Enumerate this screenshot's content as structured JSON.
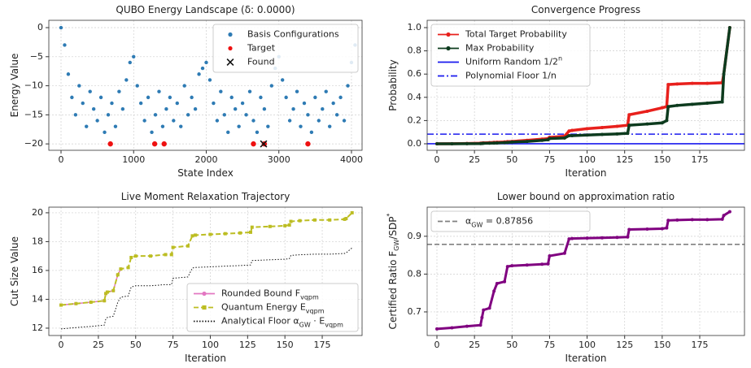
{
  "chart_data": [
    {
      "type": "scatter",
      "title": "QUBO Energy Landscape (δ: 0.0000)",
      "xlabel": "State Index",
      "ylabel": "Energy Value",
      "xlim": [
        -168,
        4146
      ],
      "ylim": [
        -21.1,
        1.26
      ],
      "xticks": [
        0,
        1000,
        2000,
        3000,
        4000
      ],
      "yticks": [
        {
          "value": -20,
          "label": "−20"
        },
        {
          "value": -15,
          "label": "−15"
        },
        {
          "value": -10,
          "label": "−10"
        },
        {
          "value": -5,
          "label": "−5"
        },
        0
      ],
      "grid": true,
      "legend": "upper right",
      "series": [
        {
          "name": "Basis Configurations",
          "color": "#2e7bb4",
          "marker": "dot",
          "x": [
            0,
            50,
            100,
            150,
            200,
            250,
            300,
            350,
            400,
            450,
            500,
            550,
            600,
            650,
            700,
            750,
            800,
            850,
            900,
            950,
            1000,
            1050,
            1100,
            1150,
            1200,
            1250,
            1300,
            1350,
            1400,
            1450,
            1500,
            1550,
            1600,
            1650,
            1700,
            1750,
            1800,
            1850,
            1900,
            1950,
            2000,
            2050,
            2100,
            2150,
            2200,
            2250,
            2300,
            2350,
            2400,
            2450,
            2500,
            2550,
            2600,
            2650,
            2700,
            2750,
            2800,
            2850,
            2900,
            2950,
            3000,
            3050,
            3100,
            3150,
            3200,
            3250,
            3300,
            3350,
            3400,
            3450,
            3500,
            3550,
            3600,
            3650,
            3700,
            3750,
            3800,
            3850,
            3900,
            3950,
            4000,
            4050
          ],
          "values": [
            0,
            -3,
            -8,
            -12,
            -15,
            -10,
            -13,
            -17,
            -11,
            -14,
            -16,
            -12,
            -18,
            -15,
            -13,
            -17,
            -11,
            -14,
            -9,
            -6,
            -5,
            -10,
            -13,
            -16,
            -12,
            -18,
            -15,
            -11,
            -17,
            -14,
            -12,
            -16,
            -13,
            -17,
            -10,
            -15,
            -12,
            -14,
            -8,
            -7,
            -6,
            -9,
            -13,
            -16,
            -11,
            -15,
            -18,
            -12,
            -14,
            -17,
            -13,
            -15,
            -11,
            -16,
            -18,
            -12,
            -14,
            -17,
            -10,
            -7,
            -5,
            -9,
            -12,
            -16,
            -14,
            -11,
            -17,
            -13,
            -15,
            -18,
            -12,
            -16,
            -14,
            -11,
            -17,
            -13,
            -15,
            -12,
            -16,
            -10,
            -6,
            -3
          ]
        },
        {
          "name": "Target",
          "color": "#ee1111",
          "marker": "dot",
          "x": [
            680,
            1290,
            1420,
            2650,
            2800,
            3400
          ],
          "values": [
            -20,
            -20,
            -20,
            -20,
            -20,
            -20
          ]
        },
        {
          "name": "Found",
          "color": "#111111",
          "marker": "x",
          "x": [
            2790
          ],
          "values": [
            -20
          ]
        }
      ]
    },
    {
      "type": "line",
      "title": "Convergence Progress",
      "xlabel": "Iteration",
      "ylabel": "Probability",
      "xlim": [
        -6.5,
        204.8
      ],
      "ylim": [
        -0.056,
        1.063
      ],
      "xticks": [
        0,
        25,
        50,
        75,
        100,
        125,
        150,
        175
      ],
      "yticks": [
        {
          "value": 0,
          "label": "0.0"
        },
        0.2,
        0.4,
        0.6,
        0.8,
        {
          "value": 1,
          "label": "1.0"
        }
      ],
      "grid": true,
      "legend": "upper left",
      "x": [
        0,
        10,
        20,
        29,
        30,
        31,
        35,
        38,
        40,
        45,
        47,
        50,
        60,
        70,
        74,
        75,
        85,
        88,
        90,
        100,
        110,
        120,
        127,
        128,
        140,
        150,
        153,
        154,
        160,
        170,
        180,
        190,
        191,
        195
      ],
      "series": [
        {
          "name": "Total Target Probability",
          "color": "#e8201c",
          "width": 3.5,
          "marker": "dot",
          "values": [
            0,
            0.001,
            0.003,
            0.005,
            0.006,
            0.008,
            0.01,
            0.012,
            0.013,
            0.016,
            0.018,
            0.02,
            0.03,
            0.04,
            0.045,
            0.055,
            0.065,
            0.11,
            0.115,
            0.13,
            0.14,
            0.15,
            0.16,
            0.25,
            0.28,
            0.31,
            0.32,
            0.51,
            0.515,
            0.52,
            0.52,
            0.525,
            0.6,
            1.0
          ]
        },
        {
          "name": "Max Probability",
          "color": "#0d3b1e",
          "width": 3.5,
          "marker": "dot",
          "values": [
            0,
            0,
            0.001,
            0.002,
            0.003,
            0.004,
            0.005,
            0.006,
            0.007,
            0.01,
            0.011,
            0.015,
            0.02,
            0.03,
            0.035,
            0.045,
            0.05,
            0.07,
            0.07,
            0.075,
            0.08,
            0.085,
            0.09,
            0.16,
            0.17,
            0.18,
            0.2,
            0.32,
            0.33,
            0.34,
            0.35,
            0.36,
            0.6,
            1.0
          ]
        }
      ],
      "hlines": [
        {
          "name": "Uniform Random 1/2^n",
          "value": 0.0002,
          "color": "#1a1aee",
          "style": "solid"
        },
        {
          "name": "Polynomial Floor 1/n",
          "value": 0.083,
          "color": "#1a1aee",
          "style": "dashdot"
        }
      ]
    },
    {
      "type": "line",
      "title": "Live Moment Relaxation Trajectory",
      "xlabel": "Iteration",
      "ylabel": "Cut Size Value",
      "xlim": [
        -8.2,
        201.7
      ],
      "ylim": [
        11.49,
        20.39
      ],
      "xticks": [
        0,
        25,
        50,
        75,
        100,
        125,
        150,
        175
      ],
      "yticks": [
        12,
        14,
        16,
        18,
        20
      ],
      "grid": true,
      "legend": "lower right",
      "x": [
        0,
        10,
        20,
        29,
        30,
        31,
        35,
        38,
        40,
        45,
        47,
        50,
        60,
        70,
        74,
        75,
        85,
        88,
        90,
        100,
        110,
        120,
        127,
        128,
        140,
        150,
        153,
        154,
        160,
        170,
        180,
        190,
        191,
        195
      ],
      "series": [
        {
          "name": "Rounded Bound F_vqpm",
          "color": "#e377c2",
          "width": 1.5,
          "marker": "dot",
          "values": [
            13.6,
            13.7,
            13.8,
            13.9,
            14.4,
            14.5,
            14.6,
            15.7,
            16.1,
            null,
            null,
            null,
            null,
            null,
            null,
            null,
            null,
            null,
            null,
            null,
            null,
            null,
            null,
            null,
            null,
            null,
            null,
            null,
            null,
            null,
            null,
            null,
            null,
            null
          ]
        },
        {
          "name": "Quantum Energy E_vqpm",
          "color": "#bcbd22",
          "width": 2,
          "marker": "square",
          "style": "dashed",
          "values": [
            13.6,
            13.7,
            13.8,
            13.9,
            14.4,
            14.5,
            14.6,
            15.7,
            16.1,
            16.2,
            16.9,
            17.0,
            17.0,
            17.1,
            17.1,
            17.6,
            17.7,
            18.4,
            18.45,
            18.5,
            18.55,
            18.6,
            18.65,
            19.0,
            19.05,
            19.1,
            19.15,
            19.4,
            19.45,
            19.5,
            19.5,
            19.55,
            19.6,
            20.0
          ]
        },
        {
          "name": "Analytical Floor α_GW · E_vqpm",
          "color": "#111111",
          "width": 1,
          "style": "dotted",
          "values": [
            11.95,
            12.04,
            12.12,
            12.21,
            12.65,
            12.74,
            12.83,
            13.79,
            14.15,
            14.23,
            14.85,
            14.94,
            14.94,
            15.02,
            15.02,
            15.46,
            15.55,
            16.17,
            16.21,
            16.25,
            16.3,
            16.34,
            16.38,
            16.69,
            16.74,
            16.78,
            16.82,
            17.04,
            17.09,
            17.13,
            17.13,
            17.18,
            17.22,
            17.57
          ]
        }
      ]
    },
    {
      "type": "line",
      "title": "Lower bound on approximation ratio",
      "xlabel": "Iteration",
      "ylabel": "Certified Ratio F_GW/SDP^*",
      "xlim": [
        -6.5,
        204.8
      ],
      "ylim": [
        0.6376,
        0.977
      ],
      "xticks": [
        0,
        25,
        50,
        75,
        100,
        125,
        150,
        175
      ],
      "yticks": [
        0.7,
        0.8,
        0.9
      ],
      "grid": true,
      "legend": "upper left",
      "x": [
        0,
        10,
        20,
        29,
        30,
        31,
        35,
        38,
        40,
        45,
        47,
        50,
        60,
        70,
        74,
        75,
        85,
        88,
        90,
        100,
        110,
        120,
        127,
        128,
        140,
        150,
        153,
        154,
        160,
        170,
        180,
        190,
        191,
        195
      ],
      "series": [
        {
          "name": null,
          "color": "#800080",
          "width": 3,
          "marker": "dot",
          "values": [
            0.655,
            0.658,
            0.662,
            0.665,
            0.685,
            0.705,
            0.71,
            0.755,
            0.775,
            0.78,
            0.82,
            0.822,
            0.824,
            0.826,
            0.827,
            0.848,
            0.855,
            0.893,
            0.894,
            0.895,
            0.896,
            0.897,
            0.898,
            0.918,
            0.919,
            0.92,
            0.922,
            0.942,
            0.943,
            0.944,
            0.944,
            0.945,
            0.955,
            0.965
          ]
        }
      ],
      "hlines": [
        {
          "name": "α_GW = 0.87856",
          "value": 0.87856,
          "color": "#808080",
          "style": "dashed"
        }
      ]
    }
  ]
}
